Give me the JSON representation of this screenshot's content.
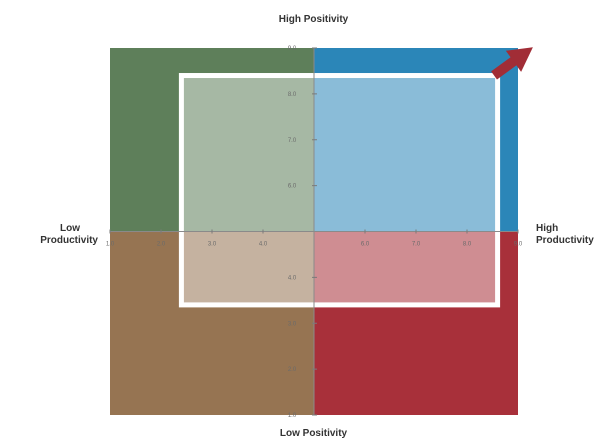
{
  "chart_data": {
    "type": "quadrant",
    "labels": {
      "top": "High Positivity",
      "bottom": "Low Positivity",
      "left_line1": "Low",
      "left_line2": "Productivity",
      "right_line1": "High",
      "right_line2": "Productivity"
    },
    "xlim": [
      1.0,
      9.0
    ],
    "ylim": [
      1.0,
      9.0
    ],
    "x_ticks": [
      {
        "value": 1.0,
        "label": "1.0"
      },
      {
        "value": 2.0,
        "label": "2.0"
      },
      {
        "value": 3.0,
        "label": "3.0"
      },
      {
        "value": 4.0,
        "label": "4.0"
      },
      {
        "value": 6.0,
        "label": "6.0"
      },
      {
        "value": 7.0,
        "label": "7.0"
      },
      {
        "value": 8.0,
        "label": "8.0"
      },
      {
        "value": 9.0,
        "label": "9.0"
      }
    ],
    "y_ticks": [
      {
        "value": 1.0,
        "label": "1.0"
      },
      {
        "value": 2.0,
        "label": "2.0"
      },
      {
        "value": 3.0,
        "label": "3.0"
      },
      {
        "value": 4.0,
        "label": "4.0"
      },
      {
        "value": 6.0,
        "label": "6.0"
      },
      {
        "value": 7.0,
        "label": "7.0"
      },
      {
        "value": 8.0,
        "label": "8.0"
      },
      {
        "value": 9.0,
        "label": "9.0"
      }
    ],
    "midpoint": {
      "x": 5.0,
      "y": 5.0
    },
    "highlight_region": {
      "x": [
        2.4,
        8.6
      ],
      "y": [
        3.4,
        8.4
      ]
    },
    "quadrants": [
      {
        "position": "top-left",
        "color": "#5e7f5a"
      },
      {
        "position": "top-right",
        "color": "#2b86b8"
      },
      {
        "position": "bottom-left",
        "color": "#967452"
      },
      {
        "position": "bottom-right",
        "color": "#a8303a"
      }
    ],
    "arrow_color": "#a12d36",
    "grid": false
  }
}
